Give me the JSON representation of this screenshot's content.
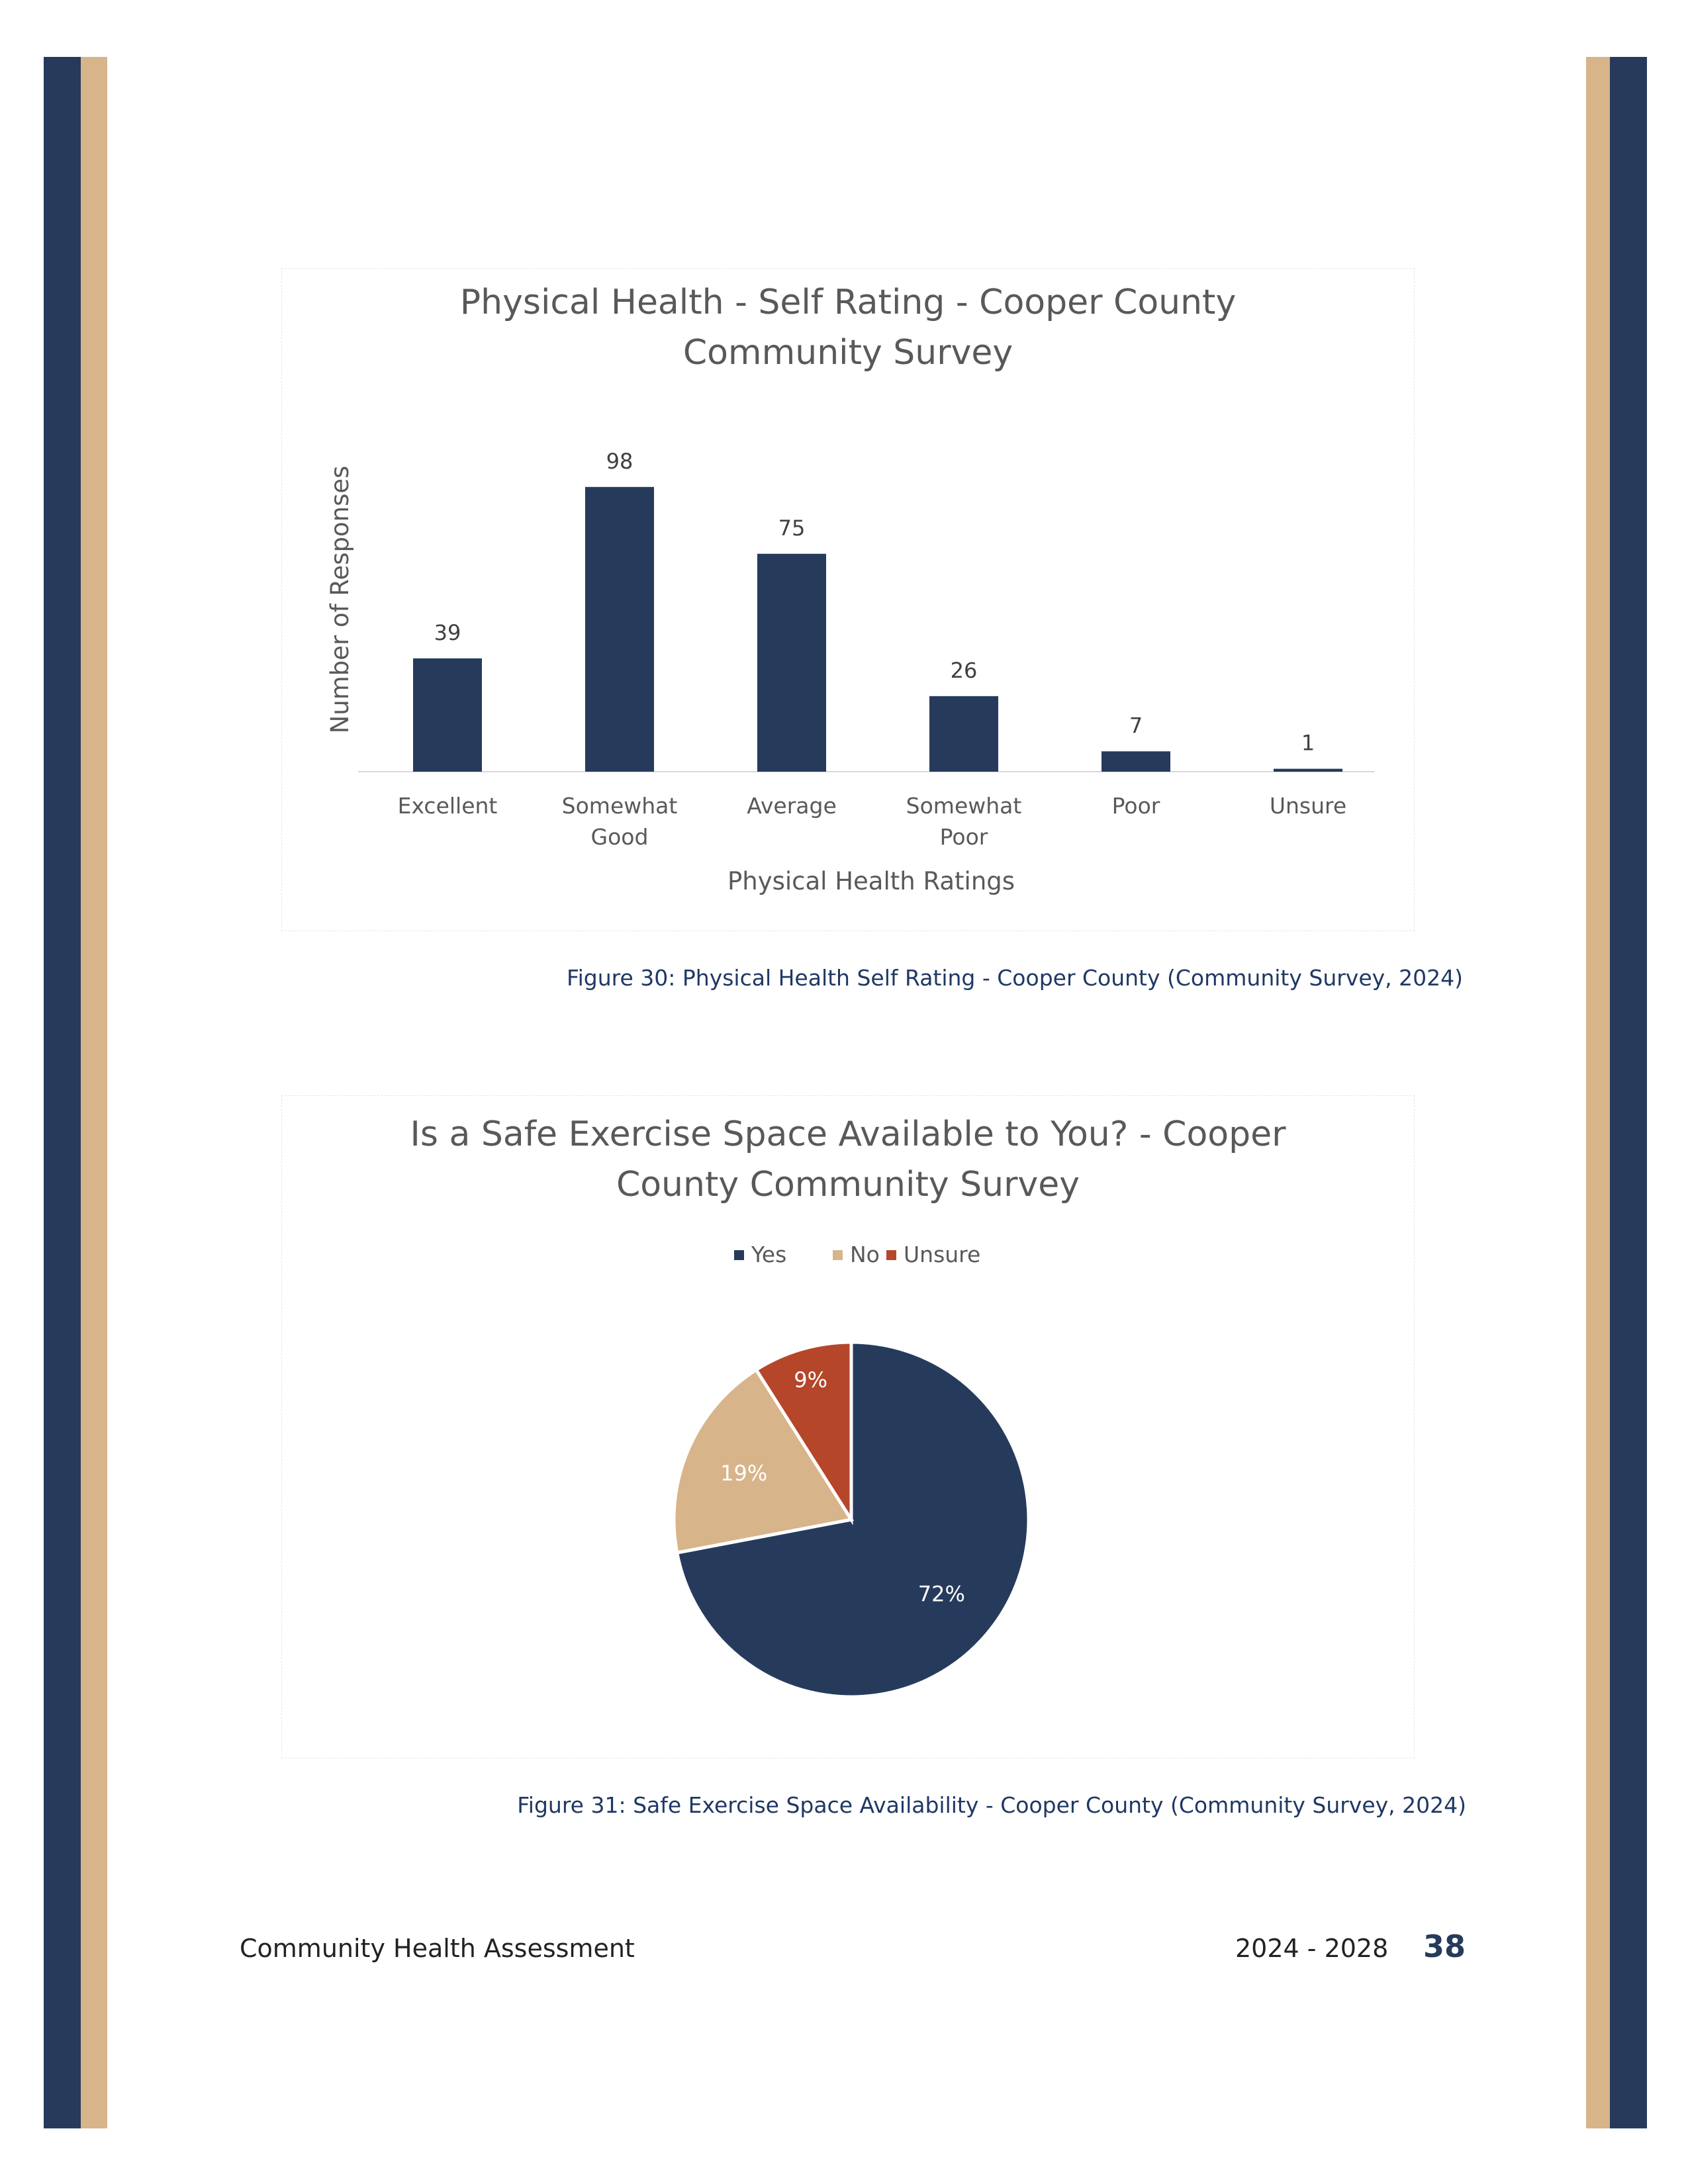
{
  "colors": {
    "navy": "#263b5c",
    "tan": "#d8b48a",
    "rust": "#b5462a"
  },
  "chart_data": [
    {
      "type": "bar",
      "title_lines": [
        "Physical Health - Self Rating - Cooper County",
        "Community Survey"
      ],
      "xlabel": "Physical Health Ratings",
      "ylabel": "Number of Responses",
      "categories": [
        [
          "Excellent"
        ],
        [
          "Somewhat",
          "Good"
        ],
        [
          "Average"
        ],
        [
          "Somewhat",
          "Poor"
        ],
        [
          "Poor"
        ],
        [
          "Unsure"
        ]
      ],
      "values": [
        39,
        98,
        75,
        26,
        7,
        1
      ],
      "ylim": [
        0,
        100
      ],
      "grid": false,
      "color": "#263b5c"
    },
    {
      "type": "pie",
      "title_lines": [
        "Is a Safe Exercise Space Available to You? - Cooper",
        "County Community Survey"
      ],
      "legend_position": "top",
      "slices": [
        {
          "label": "Yes",
          "value": 72,
          "display": "72%",
          "color": "#263b5c"
        },
        {
          "label": "No",
          "value": 19,
          "display": "19%",
          "color": "#d8b48a"
        },
        {
          "label": "Unsure",
          "value": 9,
          "display": "9%",
          "color": "#b5462a"
        }
      ]
    }
  ],
  "captions": {
    "figure_30": "Figure 30: Physical Health Self Rating - Cooper County (Community Survey, 2024)",
    "figure_31": "Figure 31: Safe Exercise Space Availability - Cooper County (Community Survey, 2024)"
  },
  "footer": {
    "left": "Community Health Assessment",
    "years": "2024 - 2028",
    "page": "38"
  }
}
